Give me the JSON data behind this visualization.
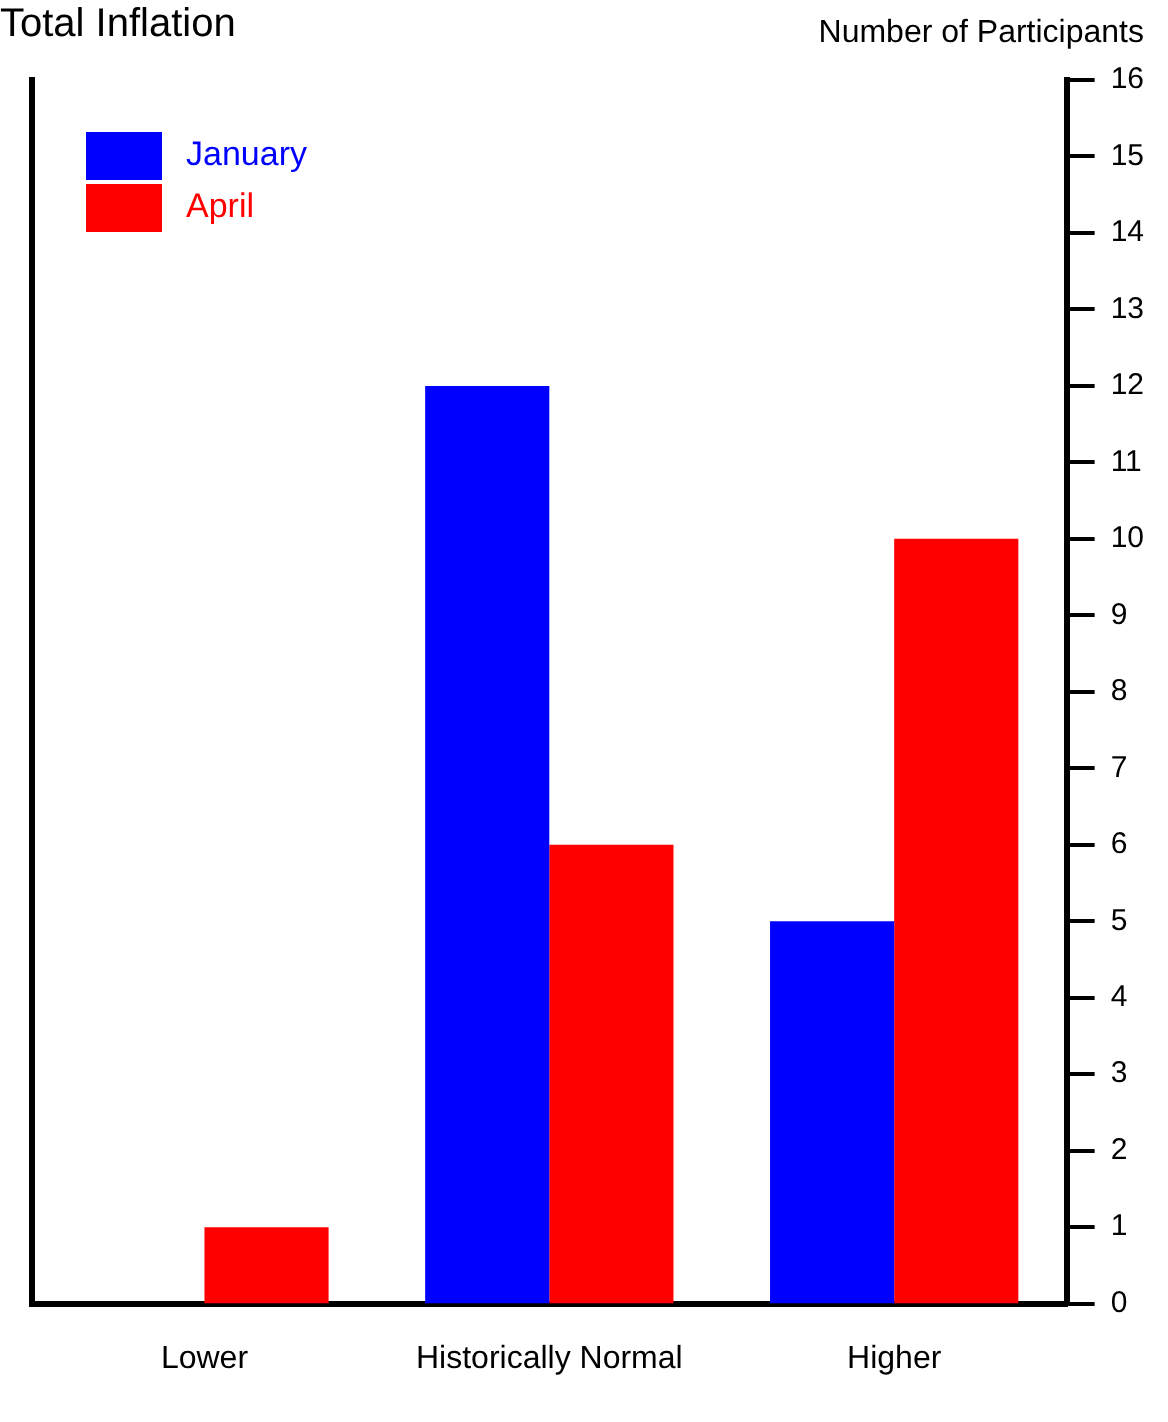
{
  "chart_data": {
    "type": "bar",
    "title": "Total Inflation",
    "ylabel": "Number of Participants",
    "categories": [
      "Lower",
      "Historically Normal",
      "Higher"
    ],
    "series": [
      {
        "name": "January",
        "color": "#0000ff",
        "values": [
          0,
          12,
          5
        ]
      },
      {
        "name": "April",
        "color": "#ff0000",
        "values": [
          1,
          6,
          10
        ]
      }
    ],
    "ylim": [
      0,
      16
    ],
    "yticks": [
      0,
      1,
      2,
      3,
      4,
      5,
      6,
      7,
      8,
      9,
      10,
      11,
      12,
      13,
      14,
      15,
      16
    ],
    "grid": false,
    "legend": "top left"
  }
}
